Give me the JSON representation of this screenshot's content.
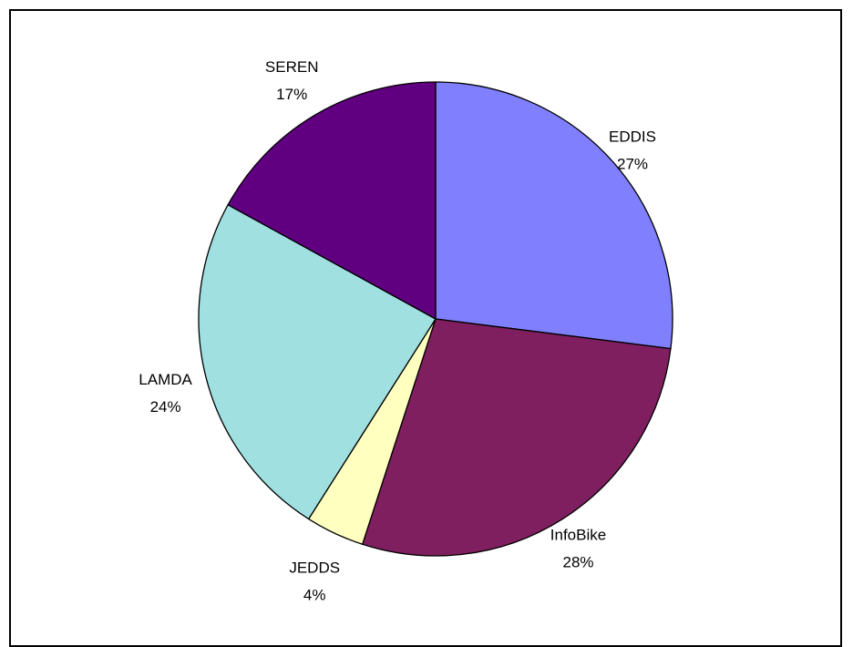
{
  "chart_data": {
    "type": "pie",
    "slices": [
      {
        "label": "EDDIS",
        "value": 27,
        "pct_label": "27%",
        "color": "#8080FF"
      },
      {
        "label": "InfoBike",
        "value": 28,
        "pct_label": "28%",
        "color": "#7F1F5F"
      },
      {
        "label": "JEDDS",
        "value": 4,
        "pct_label": "4%",
        "color": "#FFFFC0"
      },
      {
        "label": "LAMDA",
        "value": 24,
        "pct_label": "24%",
        "color": "#A0E0E0"
      },
      {
        "label": "SEREN",
        "value": 17,
        "pct_label": "17%",
        "color": "#600080"
      }
    ],
    "start": "12 o'clock",
    "direction": "clockwise",
    "legend": "none",
    "slice_border_color": "#000000"
  }
}
